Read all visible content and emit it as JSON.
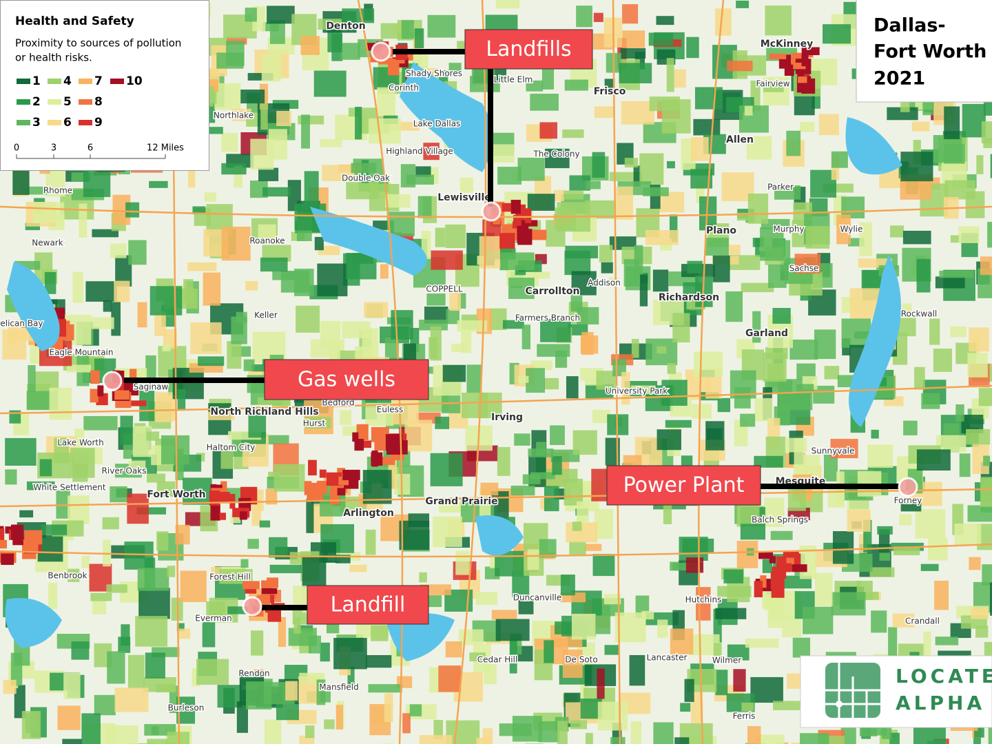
{
  "legend": {
    "title": "Health and Safety",
    "subtitle": [
      "Proximity to sources of pollution",
      "or health risks."
    ],
    "items": [
      {
        "label": "1",
        "color": "#0f6b3a"
      },
      {
        "label": "2",
        "color": "#2a9a4a"
      },
      {
        "label": "3",
        "color": "#5cb85c"
      },
      {
        "label": "4",
        "color": "#9fd26a"
      },
      {
        "label": "5",
        "color": "#dcef9c"
      },
      {
        "label": "6",
        "color": "#f7d98a"
      },
      {
        "label": "7",
        "color": "#f9b25e"
      },
      {
        "label": "8",
        "color": "#f2733f"
      },
      {
        "label": "9",
        "color": "#d9312b"
      },
      {
        "label": "10",
        "color": "#a50f24"
      }
    ],
    "scale": [
      "0",
      "3",
      "6",
      "12 Miles"
    ]
  },
  "title": [
    "Dallas-",
    "Fort Worth",
    "2021"
  ],
  "callouts": [
    "Landfills",
    "Gas wells",
    "Power Plant",
    "Landfill"
  ],
  "places": [
    "Denton",
    "Corinth",
    "Shady Shores",
    "Lake Dallas",
    "Highland Village",
    "Double Oak",
    "Lewisville",
    "Little Elm",
    "Frisco",
    "The Colony",
    "McKinney",
    "Fairview",
    "Allen",
    "Plano",
    "Parker",
    "Murphy",
    "Wylie",
    "Sachse",
    "Richardson",
    "Carrollton",
    "Addison",
    "Farmers Branch",
    "COPPELL",
    "Garland",
    "Rockwall",
    "Northlake",
    "Rhome",
    "Newark",
    "Roanoke",
    "Keller",
    "Eagle Mountain",
    "Pelican Bay",
    "Saginaw",
    "North Richland Hills",
    "Bedford",
    "Euless",
    "Hurst",
    "Haltom City",
    "Lake Worth",
    "River Oaks",
    "White Settlement",
    "Fort Worth",
    "Arlington",
    "Grand Prairie",
    "Irving",
    "University Park",
    "Mesquite",
    "Forney",
    "Balch Springs",
    "Benbrook",
    "Forest Hill",
    "Everman",
    "Duncanville",
    "Hutchins",
    "Cedar Hill",
    "De Soto",
    "Lancaster",
    "Wilmer",
    "Mansfield",
    "Rendon",
    "Burleson",
    "Crandall",
    "Sunnyvale",
    "Ferris"
  ],
  "logo": [
    "LOCATE",
    "ALPHA"
  ]
}
